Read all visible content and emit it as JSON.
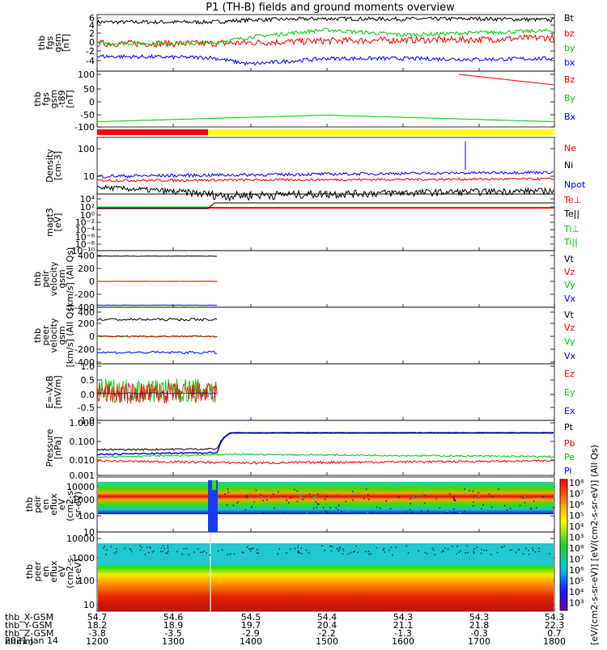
{
  "page": {
    "title": "P1 (TH-B) fields and ground moments overview"
  },
  "panels": [
    {
      "id": "fgs",
      "ylabel": [
        "thb",
        "fgs",
        "gsm",
        "[nT]"
      ],
      "yticks": [
        "6",
        "4",
        "2",
        "0",
        "-2",
        "-4"
      ],
      "legend": [
        {
          "text": "Bt",
          "color": "#000000"
        },
        {
          "text": "bz",
          "color": "#ff0000"
        },
        {
          "text": "by",
          "color": "#00cc00"
        },
        {
          "text": "bx",
          "color": "#0000ff"
        }
      ]
    },
    {
      "id": "t89",
      "ylabel": [
        "thb",
        "fgs",
        "gsm",
        "-t89",
        "[nT]"
      ],
      "yticks": [
        "100",
        "50",
        "0",
        "-50",
        "-100"
      ],
      "legend": [
        {
          "text": "Bz",
          "color": "#ff0000"
        },
        {
          "text": "By",
          "color": "#00cc00"
        },
        {
          "text": "Bx",
          "color": "#0000ff"
        }
      ]
    },
    {
      "id": "density",
      "ylabel": [
        "Density",
        "[cm-3]"
      ],
      "yticks": [
        "100",
        "10"
      ],
      "legend": [
        {
          "text": "Ne",
          "color": "#ff0000"
        },
        {
          "text": "Ni",
          "color": "#000000"
        },
        {
          "text": "Npot",
          "color": "#0000ff"
        }
      ]
    },
    {
      "id": "temp",
      "ylabel": [
        "magt3",
        "[eV]"
      ],
      "yticks": [
        "10⁴",
        "10²",
        "10⁰",
        "10⁻²",
        "10⁻⁴",
        "10⁻⁶",
        "10⁻⁸",
        "10⁻¹⁰"
      ],
      "legend": [
        {
          "text": "Te⊥",
          "color": "#ff0000"
        },
        {
          "text": "Te||",
          "color": "#000000"
        },
        {
          "text": "Ti⊥",
          "color": "#00cc00"
        },
        {
          "text": "Ti||",
          "color": "#00cc00"
        }
      ]
    },
    {
      "id": "peir_vel",
      "ylabel": [
        "thb",
        "peir",
        "velocity",
        "gsm",
        "[km/s] (All Qs)"
      ],
      "yticks": [
        "400",
        "200",
        "0",
        "-200",
        "-400"
      ],
      "legend": [
        {
          "text": "Vt",
          "color": "#000000"
        },
        {
          "text": "Vz",
          "color": "#ff0000"
        },
        {
          "text": "Vy",
          "color": "#00cc00"
        },
        {
          "text": "Vx",
          "color": "#0000ff"
        }
      ]
    },
    {
      "id": "peer_vel",
      "ylabel": [
        "thb",
        "peer",
        "velocity",
        "gsm",
        "[km/s] (All Qs)"
      ],
      "yticks": [
        "400",
        "200",
        "0",
        "-200",
        "-400"
      ],
      "legend": [
        {
          "text": "Vt",
          "color": "#000000"
        },
        {
          "text": "Vz",
          "color": "#ff0000"
        },
        {
          "text": "Vy",
          "color": "#00cc00"
        },
        {
          "text": "Vx",
          "color": "#0000ff"
        }
      ]
    },
    {
      "id": "efield",
      "ylabel": [
        "E=-VxB",
        "[mV/m]"
      ],
      "yticks": [
        "1.0",
        "0.5",
        "0.0",
        "-0.5",
        "-1.0"
      ],
      "legend": [
        {
          "text": "Ez",
          "color": "#ff0000"
        },
        {
          "text": "Ey",
          "color": "#00cc00"
        },
        {
          "text": "Ex",
          "color": "#0000ff"
        }
      ]
    },
    {
      "id": "pressure",
      "ylabel": [
        "Pressure",
        "[nPa]"
      ],
      "yticks": [
        "1.000",
        "0.100",
        "0.010",
        "0.001"
      ],
      "legend": [
        {
          "text": "Pt",
          "color": "#000000"
        },
        {
          "text": "Pb",
          "color": "#ff0000"
        },
        {
          "text": "Pe",
          "color": "#00cc00"
        },
        {
          "text": "Pi",
          "color": "#0000ff"
        }
      ]
    },
    {
      "id": "peir_spec",
      "ylabel": [
        "thb",
        "peir",
        "en",
        "eflux",
        "eV",
        "(cm2-s-",
        "sr-eV)"
      ],
      "yticks": [
        "10000",
        "1000",
        "100",
        "10"
      ]
    },
    {
      "id": "peer_spec",
      "ylabel": [
        "thb",
        "peer",
        "en",
        "eflux",
        "eV",
        "(cm2-s-",
        "sr-eV)"
      ],
      "yticks": [
        "10000",
        "1000",
        "100",
        "10"
      ]
    }
  ],
  "colorbar": {
    "ticks": [
      "10⁸",
      "10⁷",
      "10⁶",
      "10⁵",
      "10⁴",
      "10³",
      "10⁸",
      "10⁷",
      "10⁶",
      "10⁵",
      "10⁴",
      "10³"
    ],
    "label": "[eV/(cm2-s-sr-eV)] [eV/(cm2-s-sr-eV)] (All Qs)"
  },
  "xaxis": {
    "rows": [
      {
        "label": "thb_X-GSM",
        "values": [
          "54.7",
          "54.6",
          "54.5",
          "54.4",
          "54.3",
          "54.3",
          "54.3"
        ]
      },
      {
        "label": "thb_Y-GSM",
        "values": [
          "18.2",
          "18.9",
          "19.7",
          "20.4",
          "21.1",
          "21.8",
          "22.3"
        ]
      },
      {
        "label": "thb_Z-GSM",
        "values": [
          "-3.8",
          "-3.5",
          "-2.9",
          "-2.2",
          "-1.3",
          "-0.3",
          "0.7"
        ]
      },
      {
        "label": "hhmm",
        "values": [
          "1200",
          "1300",
          "1400",
          "1500",
          "1600",
          "1700",
          "1800"
        ]
      }
    ],
    "date": "2021 Jan 14"
  },
  "chart_data": {
    "type": "line",
    "title": "P1 (TH-B) fields and ground moments overview",
    "x_time_hhmm": [
      "1200",
      "1300",
      "1400",
      "1500",
      "1600",
      "1700",
      "1800"
    ],
    "data_gap_after": "1335",
    "series": [
      {
        "name": "Bt",
        "panel": "fgs",
        "x": [
          "1200",
          "1330",
          "1400",
          "1500",
          "1600",
          "1700",
          "1800"
        ],
        "values": [
          5,
          5,
          5.5,
          5.8,
          5.7,
          5.8,
          5.5
        ]
      },
      {
        "name": "bz",
        "panel": "fgs",
        "x": [
          "1200",
          "1330",
          "1400",
          "1500",
          "1600",
          "1700",
          "1800"
        ],
        "values": [
          0,
          0,
          0.2,
          0.6,
          0.8,
          0.9,
          1.4
        ]
      },
      {
        "name": "by",
        "panel": "fgs",
        "x": [
          "1200",
          "1330",
          "1400",
          "1500",
          "1600",
          "1700",
          "1800"
        ],
        "values": [
          0,
          0,
          1.5,
          3.2,
          2,
          2.5,
          3
        ]
      },
      {
        "name": "bx",
        "panel": "fgs",
        "x": [
          "1200",
          "1330",
          "1400",
          "1500",
          "1600",
          "1700",
          "1800"
        ],
        "values": [
          -3,
          -3.3,
          -4.8,
          -3.5,
          -3.5,
          -3.7,
          -3.5
        ]
      },
      {
        "name": "Bz",
        "panel": "t89",
        "x": [
          "1645",
          "1800"
        ],
        "values": [
          100,
          60
        ]
      },
      {
        "name": "By",
        "panel": "t89",
        "x": [
          "1200",
          "1500",
          "1800"
        ],
        "values": [
          -80,
          -55,
          -80
        ]
      },
      {
        "name": "Ne",
        "panel": "density",
        "x": [
          "1200",
          "1800"
        ],
        "values": [
          7,
          8
        ]
      },
      {
        "name": "Ni",
        "panel": "density",
        "x": [
          "1200",
          "1340",
          "1800"
        ],
        "values": [
          4,
          2,
          3
        ]
      },
      {
        "name": "Npot",
        "panel": "density",
        "x": [
          "1200",
          "1800"
        ],
        "values": [
          10,
          14
        ]
      },
      {
        "name": "Pt",
        "panel": "pressure",
        "x": [
          "1200",
          "1335",
          "1345",
          "1800"
        ],
        "values": [
          0.035,
          0.04,
          0.3,
          0.3
        ]
      },
      {
        "name": "Pb",
        "panel": "pressure",
        "x": [
          "1200",
          "1400",
          "1800"
        ],
        "values": [
          0.009,
          0.007,
          0.009
        ]
      },
      {
        "name": "Pe",
        "panel": "pressure",
        "x": [
          "1200",
          "1400",
          "1800"
        ],
        "values": [
          0.015,
          0.02,
          0.015
        ]
      }
    ]
  }
}
